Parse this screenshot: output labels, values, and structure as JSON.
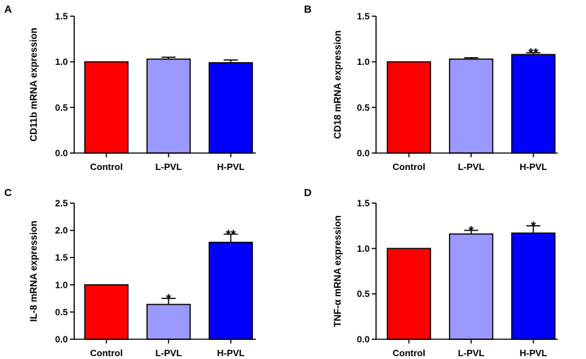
{
  "chart_data": [
    {
      "panel": "A",
      "type": "bar",
      "categories": [
        "Control",
        "L-PVL",
        "H-PVL"
      ],
      "values": [
        1.0,
        1.03,
        0.99
      ],
      "errors": [
        0,
        0.02,
        0.03
      ],
      "significance": [
        "",
        "",
        ""
      ],
      "colors": [
        "#ff0000",
        "#9999ff",
        "#0000ff"
      ],
      "ylabel": "CD11b mRNA expression",
      "ylim": [
        0,
        1.5
      ],
      "yticks": [
        0.0,
        0.5,
        1.0,
        1.5
      ],
      "ytick_labels": [
        "0.0",
        "0.5",
        "1.0",
        "1.5"
      ]
    },
    {
      "panel": "B",
      "type": "bar",
      "categories": [
        "Control",
        "L-PVL",
        "H-PVL"
      ],
      "values": [
        1.0,
        1.03,
        1.08
      ],
      "errors": [
        0,
        0.015,
        0.02
      ],
      "significance": [
        "",
        "",
        "**"
      ],
      "colors": [
        "#ff0000",
        "#9999ff",
        "#0000ff"
      ],
      "ylabel": "CD18 mRNA expression",
      "ylim": [
        0,
        1.5
      ],
      "yticks": [
        0.0,
        0.5,
        1.0,
        1.5
      ],
      "ytick_labels": [
        "0.0",
        "0.5",
        "1.0",
        "1.5"
      ]
    },
    {
      "panel": "C",
      "type": "bar",
      "categories": [
        "Control",
        "L-PVL",
        "H-PVL"
      ],
      "values": [
        1.0,
        0.64,
        1.78
      ],
      "errors": [
        0,
        0.11,
        0.15
      ],
      "significance": [
        "",
        "*",
        "**"
      ],
      "colors": [
        "#ff0000",
        "#9999ff",
        "#0000ff"
      ],
      "ylabel": "IL-8 mRNA expression",
      "ylim": [
        0,
        2.5
      ],
      "yticks": [
        0.0,
        0.5,
        1.0,
        1.5,
        2.0,
        2.5
      ],
      "ytick_labels": [
        "0.0",
        "0.5",
        "1.0",
        "1.5",
        "2.0",
        "2.5"
      ]
    },
    {
      "panel": "D",
      "type": "bar",
      "categories": [
        "Control",
        "L-PVL",
        "H-PVL"
      ],
      "values": [
        1.0,
        1.16,
        1.17
      ],
      "errors": [
        0,
        0.04,
        0.08
      ],
      "significance": [
        "",
        "*",
        "*"
      ],
      "colors": [
        "#ff0000",
        "#9999ff",
        "#0000ff"
      ],
      "ylabel": "TNF-α mRNA expression",
      "ylim": [
        0,
        1.5
      ],
      "yticks": [
        0.0,
        0.5,
        1.0,
        1.5
      ],
      "ytick_labels": [
        "0.0",
        "0.5",
        "1.0",
        "1.5"
      ]
    }
  ]
}
